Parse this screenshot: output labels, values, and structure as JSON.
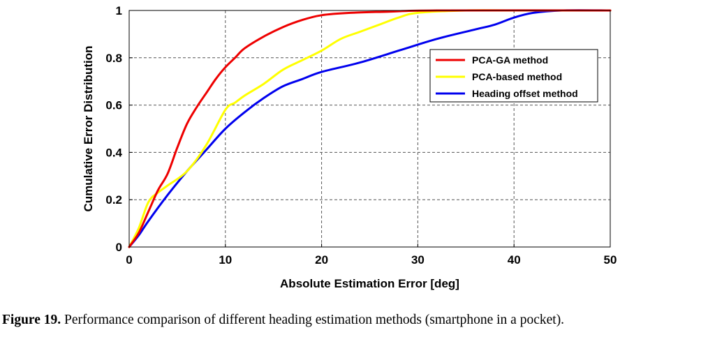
{
  "chart_data": {
    "type": "line",
    "xlabel": "Absolute Estimation Error [deg]",
    "ylabel": "Cumulative Error Distribution",
    "xlim": [
      0,
      50
    ],
    "ylim": [
      0,
      1
    ],
    "x_ticks": [
      "0",
      "10",
      "20",
      "30",
      "40",
      "50"
    ],
    "y_ticks": [
      "0",
      "0.2",
      "0.4",
      "0.6",
      "0.8",
      "1"
    ],
    "grid": true,
    "legend_position": "top-right",
    "series": [
      {
        "name": "PCA-GA method",
        "color": "#ee0000",
        "points": [
          [
            0,
            0
          ],
          [
            1,
            0.06
          ],
          [
            2,
            0.15
          ],
          [
            3,
            0.24
          ],
          [
            4,
            0.31
          ],
          [
            5,
            0.42
          ],
          [
            6,
            0.52
          ],
          [
            7,
            0.59
          ],
          [
            8,
            0.65
          ],
          [
            9,
            0.71
          ],
          [
            10,
            0.76
          ],
          [
            11,
            0.8
          ],
          [
            12,
            0.84
          ],
          [
            14,
            0.89
          ],
          [
            16,
            0.93
          ],
          [
            18,
            0.96
          ],
          [
            20,
            0.98
          ],
          [
            23,
            0.99
          ],
          [
            27,
            0.995
          ],
          [
            32,
            1.0
          ],
          [
            50,
            1.0
          ]
        ]
      },
      {
        "name": "PCA-based method",
        "color": "#ffff00",
        "points": [
          [
            0,
            0
          ],
          [
            1,
            0.08
          ],
          [
            2,
            0.19
          ],
          [
            3,
            0.23
          ],
          [
            4,
            0.26
          ],
          [
            6,
            0.32
          ],
          [
            8,
            0.43
          ],
          [
            10,
            0.58
          ],
          [
            11,
            0.61
          ],
          [
            12,
            0.64
          ],
          [
            14,
            0.69
          ],
          [
            16,
            0.75
          ],
          [
            18,
            0.79
          ],
          [
            20,
            0.83
          ],
          [
            22,
            0.88
          ],
          [
            24,
            0.91
          ],
          [
            26,
            0.94
          ],
          [
            28,
            0.97
          ],
          [
            30,
            0.99
          ],
          [
            35,
            1.0
          ],
          [
            40,
            1.0
          ],
          [
            45,
            1.0
          ],
          [
            50,
            1.0
          ]
        ]
      },
      {
        "name": "Heading offset method",
        "color": "#0000ee",
        "points": [
          [
            0,
            0
          ],
          [
            1,
            0.05
          ],
          [
            2,
            0.11
          ],
          [
            4,
            0.22
          ],
          [
            6,
            0.32
          ],
          [
            8,
            0.41
          ],
          [
            10,
            0.5
          ],
          [
            12,
            0.57
          ],
          [
            14,
            0.63
          ],
          [
            16,
            0.68
          ],
          [
            18,
            0.71
          ],
          [
            20,
            0.74
          ],
          [
            24,
            0.78
          ],
          [
            28,
            0.83
          ],
          [
            32,
            0.88
          ],
          [
            36,
            0.92
          ],
          [
            38,
            0.94
          ],
          [
            40,
            0.97
          ],
          [
            42,
            0.99
          ],
          [
            45,
            1.0
          ],
          [
            50,
            1.0
          ]
        ]
      }
    ]
  },
  "caption": {
    "label": "Figure 19.",
    "text": " Performance comparison of different heading estimation methods (smartphone in a pocket)."
  }
}
